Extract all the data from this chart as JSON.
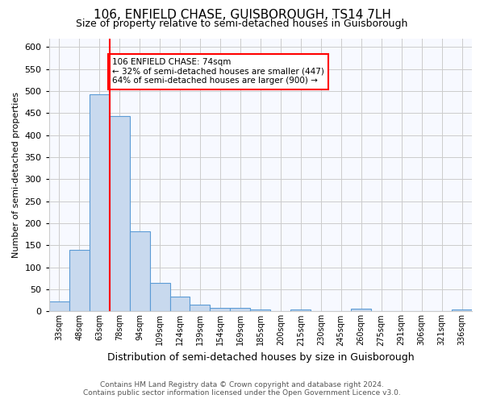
{
  "title1": "106, ENFIELD CHASE, GUISBOROUGH, TS14 7LH",
  "title2": "Size of property relative to semi-detached houses in Guisborough",
  "xlabel": "Distribution of semi-detached houses by size in Guisborough",
  "ylabel": "Number of semi-detached properties",
  "footer1": "Contains HM Land Registry data © Crown copyright and database right 2024.",
  "footer2": "Contains public sector information licensed under the Open Government Licence v3.0.",
  "bin_labels": [
    "33sqm",
    "48sqm",
    "63sqm",
    "78sqm",
    "94sqm",
    "109sqm",
    "124sqm",
    "139sqm",
    "154sqm",
    "169sqm",
    "185sqm",
    "200sqm",
    "215sqm",
    "230sqm",
    "245sqm",
    "260sqm",
    "275sqm",
    "291sqm",
    "306sqm",
    "321sqm",
    "336sqm"
  ],
  "bin_values": [
    22,
    140,
    493,
    443,
    182,
    65,
    33,
    16,
    8,
    8,
    5,
    0,
    5,
    0,
    0,
    6,
    0,
    0,
    0,
    0,
    5
  ],
  "bar_color": "#c8d9ee",
  "bar_edge_color": "#5b9bd5",
  "red_line_bin": 3,
  "annotation_text": "106 ENFIELD CHASE: 74sqm\n← 32% of semi-detached houses are smaller (447)\n64% of semi-detached houses are larger (900) →",
  "annotation_box_color": "white",
  "annotation_border_color": "red",
  "ylim": [
    0,
    620
  ],
  "yticks": [
    0,
    50,
    100,
    150,
    200,
    250,
    300,
    350,
    400,
    450,
    500,
    550,
    600
  ],
  "grid_color": "#cccccc",
  "bg_color": "#ffffff",
  "plot_bg_color": "#f7f9ff"
}
